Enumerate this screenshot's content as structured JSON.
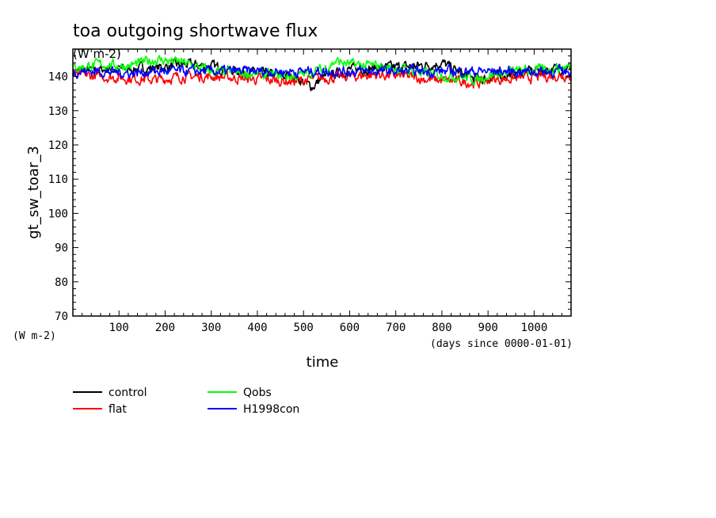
{
  "chart_data": {
    "type": "line",
    "title": "toa outgoing shortwave flux",
    "title_units": "(W m-2)",
    "ylabel": "gt_sw_toar_3",
    "ylabel_units": "(W m-2)",
    "xlabel": "time",
    "xlabel_units": "(days since 0000-01-01)",
    "xlim": [
      0,
      1080
    ],
    "ylim": [
      70,
      148
    ],
    "xticks": [
      100,
      200,
      300,
      400,
      500,
      600,
      700,
      800,
      900,
      1000
    ],
    "yticks": [
      70,
      80,
      90,
      100,
      110,
      120,
      130,
      140
    ],
    "grid": false,
    "legend_position": "bottom-left",
    "series": [
      {
        "name": "control",
        "color": "#000000",
        "x": [
          0,
          60,
          120,
          180,
          240,
          300,
          360,
          420,
          480,
          510,
          520,
          540,
          600,
          660,
          720,
          780,
          800,
          840,
          880,
          900,
          960,
          1020,
          1080
        ],
        "values": [
          141.5,
          142.0,
          142.2,
          142.5,
          143.5,
          143.0,
          141.5,
          140.5,
          140.0,
          137.5,
          137.0,
          139.5,
          142.0,
          142.5,
          142.8,
          143.5,
          144.0,
          141.0,
          139.0,
          139.5,
          141.0,
          142.0,
          142.5
        ]
      },
      {
        "name": "flat",
        "color": "#ff0000",
        "x": [
          0,
          60,
          120,
          180,
          240,
          300,
          360,
          420,
          480,
          540,
          600,
          660,
          720,
          780,
          840,
          880,
          900,
          960,
          1020,
          1080
        ],
        "values": [
          140.5,
          140.0,
          139.5,
          139.0,
          140.0,
          140.0,
          139.5,
          139.0,
          138.5,
          139.5,
          140.0,
          140.5,
          140.0,
          139.0,
          138.5,
          138.0,
          139.0,
          139.5,
          140.0,
          140.5
        ]
      },
      {
        "name": "Qobs",
        "color": "#00ff00",
        "x": [
          0,
          60,
          120,
          180,
          240,
          300,
          360,
          420,
          480,
          540,
          570,
          600,
          660,
          720,
          780,
          840,
          880,
          900,
          960,
          1020,
          1080
        ],
        "values": [
          142.5,
          143.5,
          143.0,
          145.0,
          144.0,
          141.5,
          141.0,
          140.5,
          140.0,
          142.0,
          144.5,
          143.5,
          143.0,
          142.0,
          140.5,
          140.0,
          139.0,
          140.5,
          141.5,
          142.0,
          143.0
        ]
      },
      {
        "name": "H1998con",
        "color": "#0000ff",
        "x": [
          0,
          60,
          120,
          180,
          240,
          300,
          360,
          420,
          480,
          540,
          600,
          660,
          720,
          780,
          840,
          900,
          960,
          1020,
          1080
        ],
        "values": [
          141.5,
          141.5,
          141.0,
          141.5,
          141.5,
          141.5,
          141.5,
          141.5,
          141.5,
          141.5,
          141.5,
          141.5,
          141.5,
          141.5,
          141.5,
          141.5,
          141.5,
          141.5,
          141.5
        ]
      }
    ]
  }
}
